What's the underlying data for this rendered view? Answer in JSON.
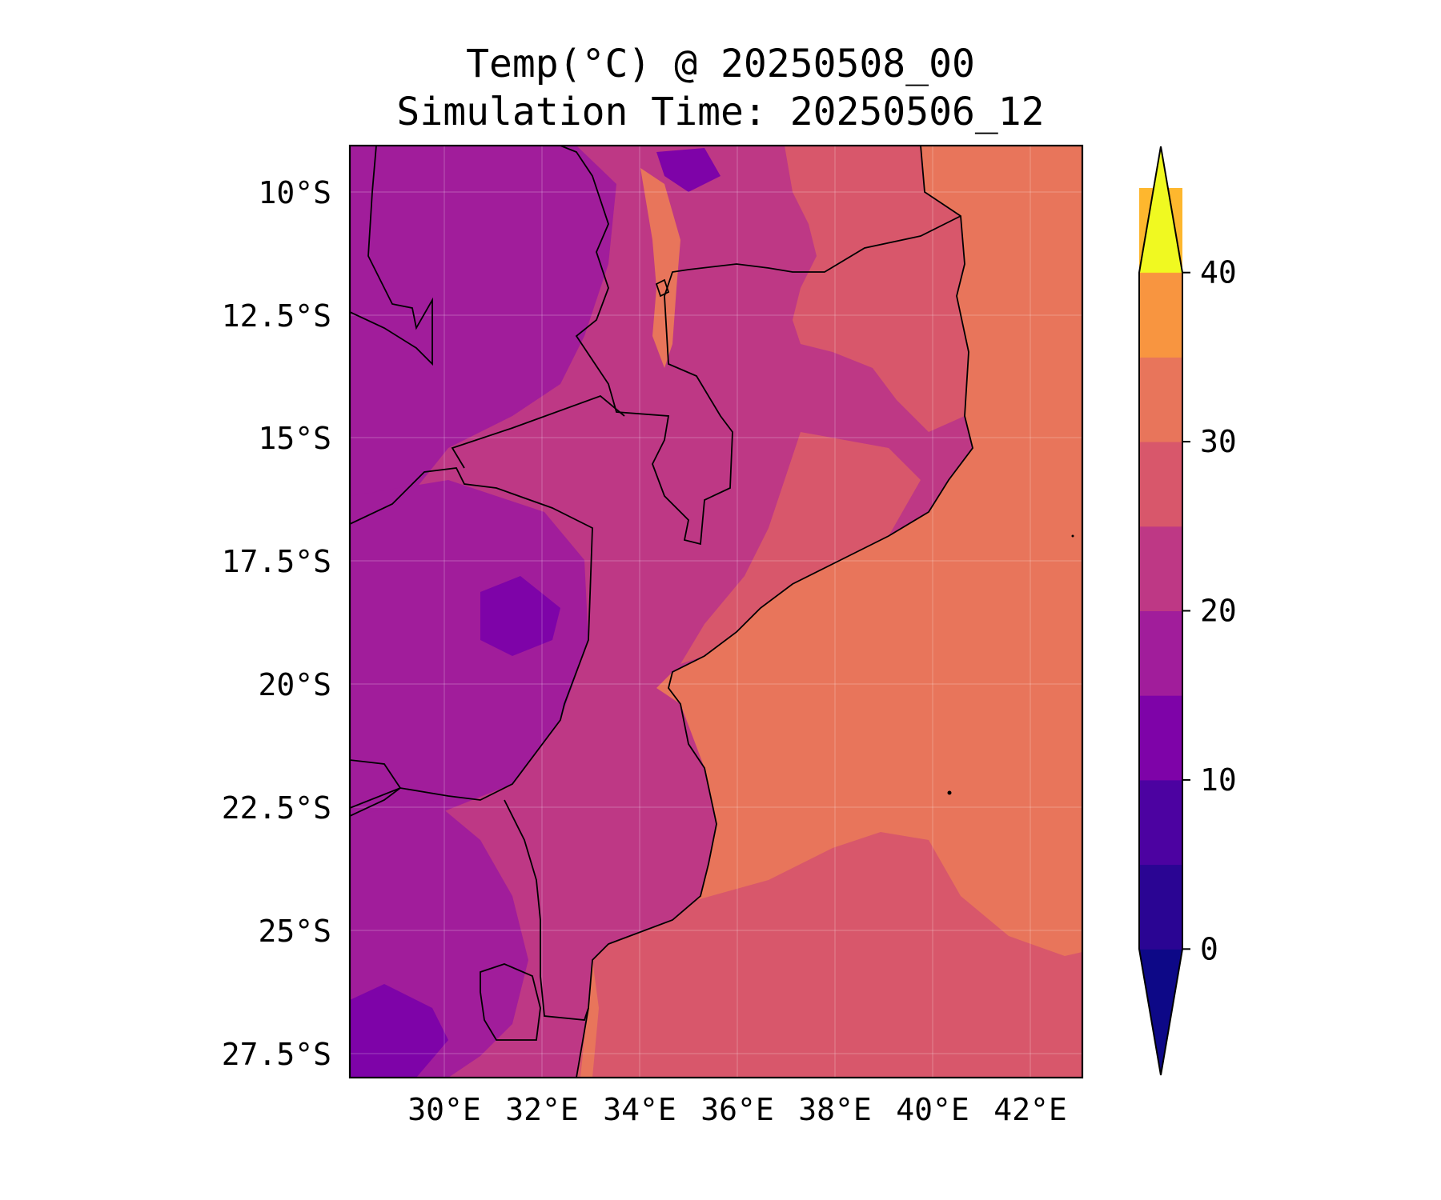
{
  "title": {
    "line1": "Temp(°C) @ 20250508_00",
    "line2": "Simulation Time: 20250506_12"
  },
  "map": {
    "lat_ticks": [
      "10°S",
      "12.5°S",
      "15°S",
      "17.5°S",
      "20°S",
      "22.5°S",
      "25°S",
      "27.5°S"
    ],
    "lon_ticks": [
      "30°E",
      "32°E",
      "34°E",
      "36°E",
      "38°E",
      "40°E",
      "42°E"
    ],
    "lat_values": [
      -10,
      -12.5,
      -15,
      -17.5,
      -20,
      -22.5,
      -25,
      -27.5
    ],
    "lon_values": [
      30,
      32,
      34,
      36,
      38,
      40,
      42
    ],
    "extent": {
      "lon_min": 28.0,
      "lon_max": 43.0,
      "lat_min": -28.4,
      "lat_max": -9.1
    }
  },
  "colorbar": {
    "tick_labels": [
      "40",
      "30",
      "20",
      "10",
      "0"
    ],
    "tick_values": [
      40,
      30,
      20,
      10,
      0
    ],
    "range": [
      -5,
      45
    ],
    "extend": "both",
    "colors": [
      "#0d0887",
      "#2a0593",
      "#4c02a1",
      "#7e03a8",
      "#a11d9b",
      "#be3885",
      "#d8576b",
      "#e8755b",
      "#f89540",
      "#feb72e",
      "#f0f921"
    ],
    "bounds": [
      -5,
      0,
      5,
      10,
      15,
      20,
      25,
      30,
      35,
      40,
      45
    ]
  }
}
